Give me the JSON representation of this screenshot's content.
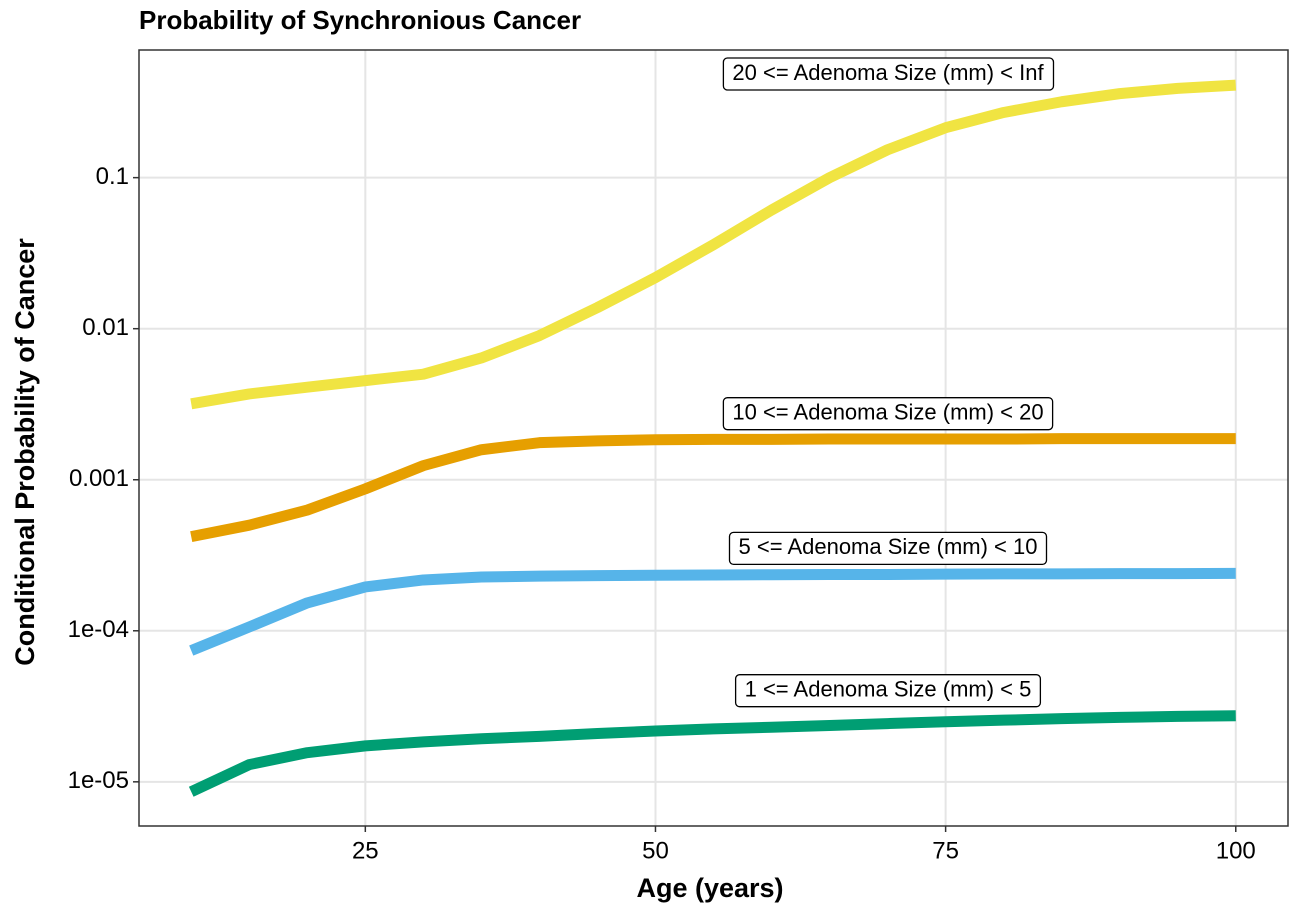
{
  "chart_data": {
    "type": "line",
    "title": "Probability of Synchronious Cancer",
    "x_label": "Age (years)",
    "y_label": "Conditional Probability of Cancer",
    "x": [
      10,
      15,
      20,
      25,
      30,
      35,
      40,
      45,
      50,
      55,
      60,
      65,
      70,
      75,
      80,
      85,
      90,
      95,
      100
    ],
    "series": [
      {
        "name": "20 <= Adenoma Size (mm) < Inf",
        "color": "#f0e442",
        "values": [
          0.00318,
          0.0037,
          0.0041,
          0.00453,
          0.005,
          0.0064,
          0.009,
          0.0138,
          0.0218,
          0.036,
          0.061,
          0.1,
          0.153,
          0.214,
          0.27,
          0.318,
          0.36,
          0.39,
          0.41
        ]
      },
      {
        "name": "10 <= Adenoma Size (mm) < 20",
        "color": "#e69f00",
        "values": [
          0.00042,
          0.0005,
          0.00063,
          0.00087,
          0.00124,
          0.00158,
          0.00176,
          0.00181,
          0.00184,
          0.00185,
          0.00185,
          0.00186,
          0.00186,
          0.00186,
          0.00186,
          0.00187,
          0.00187,
          0.00187,
          0.00187
        ]
      },
      {
        "name": "5 <= Adenoma Size (mm) < 10",
        "color": "#56b4e9",
        "values": [
          7.4e-05,
          0.000106,
          0.000153,
          0.000195,
          0.000217,
          0.000227,
          0.00023,
          0.000232,
          0.000233,
          0.000234,
          0.000235,
          0.000236,
          0.000236,
          0.000237,
          0.000238,
          0.000238,
          0.000239,
          0.000239,
          0.00024
        ]
      },
      {
        "name": "1 <= Adenoma Size (mm) < 5",
        "color": "#009e73",
        "values": [
          8.6e-06,
          1.3e-05,
          1.56e-05,
          1.73e-05,
          1.84e-05,
          1.93e-05,
          2e-05,
          2.09e-05,
          2.17e-05,
          2.24e-05,
          2.3e-05,
          2.36e-05,
          2.43e-05,
          2.5e-05,
          2.56e-05,
          2.62e-05,
          2.67e-05,
          2.71e-05,
          2.74e-05
        ]
      }
    ],
    "xlim": [
      5.5,
      104.5
    ],
    "xticks": [
      25,
      50,
      75,
      100
    ],
    "ylim": [
      5.1e-06,
      0.7
    ],
    "yticks": [
      {
        "value": 1e-05,
        "label": "1e-05"
      },
      {
        "value": 0.0001,
        "label": "1e-04"
      },
      0.001,
      0.01,
      0.1
    ],
    "log_y": true,
    "grid": true
  }
}
